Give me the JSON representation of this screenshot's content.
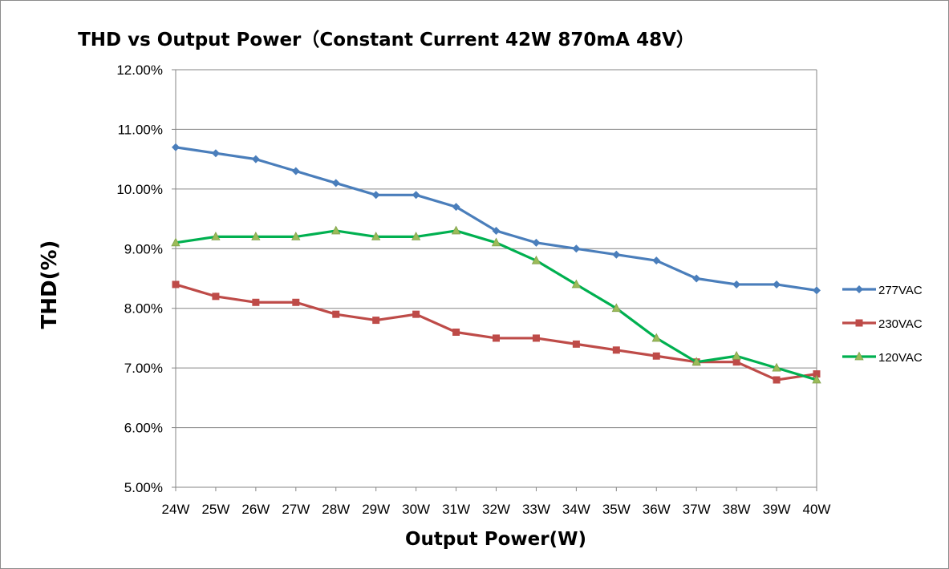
{
  "chart_data": {
    "type": "line",
    "title": "THD vs Output Power（Constant Current 42W  870mA 48V）",
    "xlabel": "Output Power(W)",
    "ylabel": "THD(%)",
    "categories": [
      "24W",
      "25W",
      "26W",
      "27W",
      "28W",
      "29W",
      "30W",
      "31W",
      "32W",
      "33W",
      "34W",
      "35W",
      "36W",
      "37W",
      "38W",
      "39W",
      "40W"
    ],
    "ylim": [
      5,
      12
    ],
    "yticks": [
      "5.00%",
      "6.00%",
      "7.00%",
      "8.00%",
      "9.00%",
      "10.00%",
      "11.00%",
      "12.00%"
    ],
    "grid": true,
    "legend_position": "right",
    "series": [
      {
        "name": "277VAC",
        "color": "#4a7ebb",
        "marker": "diamond",
        "values": [
          10.7,
          10.6,
          10.5,
          10.3,
          10.1,
          9.9,
          9.9,
          9.7,
          9.3,
          9.1,
          9.0,
          8.9,
          8.8,
          8.5,
          8.4,
          8.4,
          8.3
        ]
      },
      {
        "name": "230VAC",
        "color": "#be4b48",
        "marker": "square",
        "values": [
          8.4,
          8.2,
          8.1,
          8.1,
          7.9,
          7.8,
          7.9,
          7.6,
          7.5,
          7.5,
          7.4,
          7.3,
          7.2,
          7.1,
          7.1,
          6.8,
          6.9
        ]
      },
      {
        "name": "120VAC",
        "color": "#00b050",
        "marker": "triangle",
        "marker_color": "#9bbb59",
        "values": [
          9.1,
          9.2,
          9.2,
          9.2,
          9.3,
          9.2,
          9.2,
          9.3,
          9.1,
          8.8,
          8.4,
          8.0,
          7.5,
          7.1,
          7.2,
          7.0,
          6.8
        ]
      }
    ]
  }
}
